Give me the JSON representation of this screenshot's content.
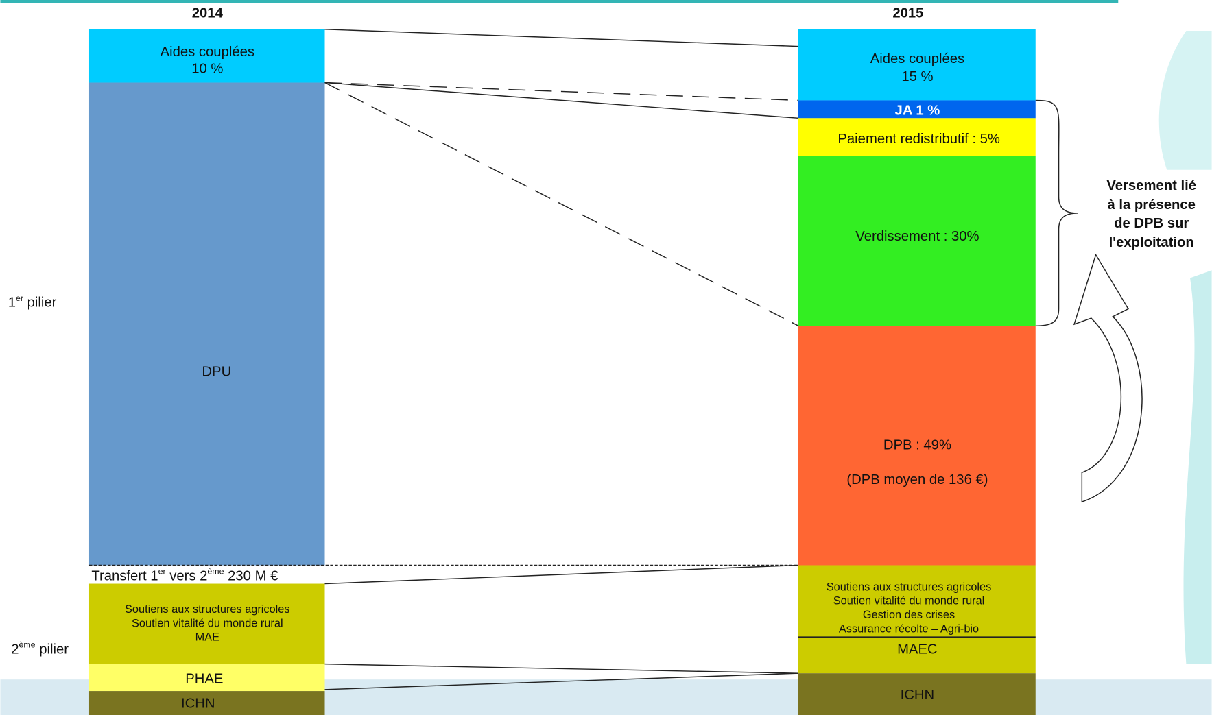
{
  "header": {
    "year_left": "2014",
    "year_right": "2015"
  },
  "pillars": {
    "first": [
      "1",
      "er",
      " pilier"
    ],
    "second": [
      "2",
      "ème",
      " pilier"
    ]
  },
  "left_blocks": {
    "aides": [
      "Aides couplées",
      "10 %"
    ],
    "dpu": "DPU",
    "transfert": [
      "Transfert 1",
      "er",
      " vers 2",
      "ème",
      " 230 M €"
    ],
    "soutiens": [
      "Soutiens aux structures agricoles",
      "Soutien vitalité du monde rural",
      "MAE"
    ],
    "phae": "PHAE",
    "ichn": "ICHN"
  },
  "right_blocks": {
    "aides": [
      "Aides couplées",
      "15 %"
    ],
    "ja": "JA 1 %",
    "paiement": "Paiement redistributif : 5%",
    "verdissement": "Verdissement : 30%",
    "dpb": [
      "DPB : 49%",
      "(DPB moyen de 136 €)"
    ],
    "soutiens": [
      "Soutiens aux structures agricoles",
      "Soutien vitalité du monde rural",
      "Gestion des crises",
      "Assurance récolte – Agri-bio"
    ],
    "maec": "MAEC",
    "ichn": "ICHN"
  },
  "note": [
    "Versement lié",
    "à la présence",
    "de DPB sur",
    "l'exploitation"
  ]
}
